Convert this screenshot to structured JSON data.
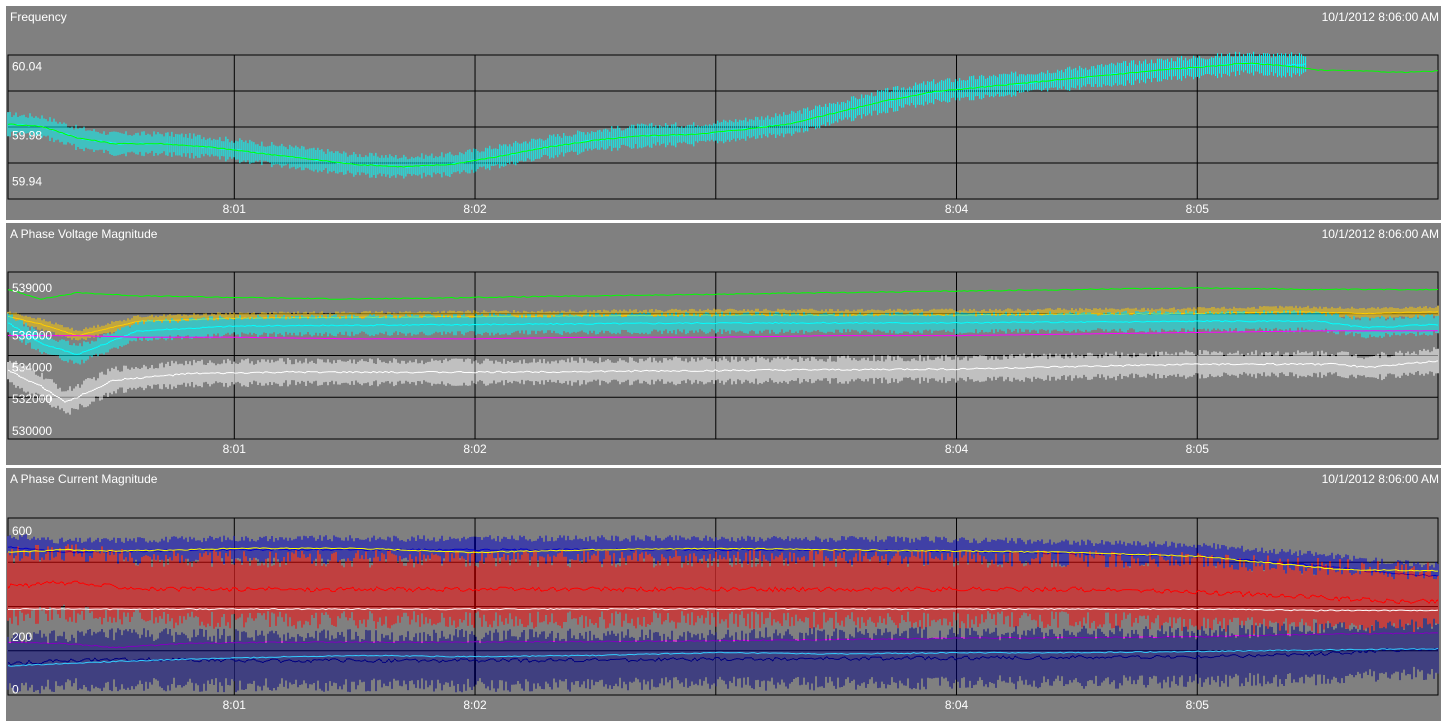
{
  "chart_data": [
    {
      "type": "line",
      "title": "Frequency",
      "timestamp": "10/1/2012 8:06:00 AM",
      "x_ticks": [
        "8:01",
        "8:02",
        "8:04",
        "8:05"
      ],
      "x_unit": "minutes after 8:00",
      "xlim": [
        0.06,
        6.0
      ],
      "y_ticks": [
        "60.04",
        "59.98",
        "59.94"
      ],
      "ylim": [
        59.925,
        60.05
      ],
      "grid": true,
      "series": [
        {
          "color": "#00ffff",
          "style": "band",
          "x": [
            0.06,
            0.2,
            0.35,
            0.5,
            0.7,
            0.9,
            1.1,
            1.3,
            1.5,
            1.7,
            1.9,
            2.1,
            2.3,
            2.5,
            2.7,
            2.9,
            3.1,
            3.3,
            3.5,
            3.7,
            3.9,
            4.1,
            4.3,
            4.5,
            4.7,
            4.9,
            5.05,
            5.2,
            5.35,
            5.45
          ],
          "y": [
            59.99,
            59.988,
            59.978,
            59.973,
            59.973,
            59.97,
            59.965,
            59.96,
            59.955,
            59.953,
            59.955,
            59.962,
            59.97,
            59.976,
            59.98,
            59.981,
            59.985,
            59.99,
            60.0,
            60.01,
            60.018,
            60.022,
            60.026,
            60.03,
            60.034,
            60.038,
            60.04,
            60.043,
            60.041,
            60.042
          ],
          "spread": 0.011
        },
        {
          "color": "#00ff00",
          "x": [
            0.06,
            0.2,
            0.35,
            0.5,
            0.7,
            0.9,
            1.1,
            1.3,
            1.5,
            1.7,
            1.9,
            2.1,
            2.3,
            2.5,
            2.7,
            2.9,
            3.1,
            3.3,
            3.5,
            3.7,
            3.9,
            4.1,
            4.3,
            4.5,
            4.7,
            4.9,
            5.05,
            5.2,
            5.35,
            5.5,
            5.7,
            5.85,
            6.0
          ],
          "y": [
            59.99,
            59.988,
            59.978,
            59.973,
            59.973,
            59.97,
            59.965,
            59.96,
            59.955,
            59.953,
            59.955,
            59.962,
            59.97,
            59.976,
            59.98,
            59.981,
            59.985,
            59.99,
            60.0,
            60.01,
            60.018,
            60.022,
            60.026,
            60.03,
            60.034,
            60.038,
            60.04,
            60.043,
            60.041,
            60.037,
            60.036,
            60.035,
            60.036
          ]
        }
      ]
    },
    {
      "type": "line",
      "title": "A Phase Voltage Magnitude",
      "timestamp": "10/1/2012 8:06:00 AM",
      "x_ticks": [
        "8:01",
        "8:02",
        "8:04",
        "8:05"
      ],
      "x_unit": "minutes after 8:00",
      "xlim": [
        0.06,
        6.0
      ],
      "y_ticks": [
        "539000",
        "536000",
        "534000",
        "532000",
        "530000"
      ],
      "ylim": [
        529500,
        540000
      ],
      "grid": true,
      "series": [
        {
          "color": "#00ff00",
          "x": [
            0.06,
            0.2,
            0.35,
            0.6,
            1.0,
            1.5,
            2.0,
            2.5,
            3.0,
            3.5,
            4.0,
            4.5,
            5.0,
            5.5,
            6.0
          ],
          "y": [
            538900,
            538300,
            538700,
            538500,
            538400,
            538300,
            538400,
            538500,
            538600,
            538700,
            538800,
            538900,
            539000,
            538900,
            538900
          ]
        },
        {
          "color": "#ffcc00",
          "style": "band",
          "x": [
            0.06,
            0.2,
            0.35,
            0.6,
            1.0,
            2.0,
            3.0,
            4.0,
            5.0,
            5.4,
            5.7,
            6.0
          ],
          "y": [
            537200,
            536700,
            536000,
            536900,
            537100,
            537200,
            537300,
            537300,
            537400,
            537500,
            537400,
            537500
          ],
          "spread": 400
        },
        {
          "color": "#00ffff",
          "style": "band",
          "x": [
            0.06,
            0.2,
            0.35,
            0.6,
            1.0,
            2.0,
            3.0,
            4.0,
            5.0,
            5.5,
            5.7,
            6.0
          ],
          "y": [
            536800,
            535500,
            534800,
            536300,
            536600,
            536700,
            536800,
            536800,
            536900,
            536900,
            536500,
            536700
          ],
          "spread": 700
        },
        {
          "color": "#ff00ff",
          "x": [
            0.06,
            0.35,
            0.6,
            1.0,
            1.5,
            2.0,
            2.5,
            3.0,
            3.5,
            4.0,
            4.5,
            5.0,
            5.5,
            6.0
          ],
          "y": [
            536000,
            536000,
            535900,
            535900,
            535800,
            535800,
            535900,
            535900,
            536000,
            536000,
            536100,
            536200,
            536300,
            536300
          ],
          "spread": 150
        },
        {
          "color": "#ffffff",
          "style": "band",
          "x": [
            0.06,
            0.2,
            0.3,
            0.5,
            0.8,
            1.2,
            2.0,
            3.0,
            4.0,
            5.0,
            5.6,
            5.7,
            6.0
          ],
          "y": [
            533800,
            532800,
            531800,
            533200,
            533600,
            533700,
            533700,
            533800,
            533900,
            534200,
            534200,
            534000,
            534400
          ],
          "spread": 900
        }
      ]
    },
    {
      "type": "line",
      "title": "A Phase Current Magnitude",
      "timestamp": "10/1/2012 8:06:00 AM",
      "x_ticks": [
        "8:01",
        "8:02",
        "8:04",
        "8:05"
      ],
      "x_unit": "minutes after 8:00",
      "xlim": [
        0.06,
        6.0
      ],
      "y_ticks": [
        "600",
        "200",
        "0"
      ],
      "ylim": [
        -20,
        650
      ],
      "grid": true,
      "series": [
        {
          "color": "#0000cc",
          "style": "band",
          "x": [
            0.06,
            0.3,
            0.6,
            1.0,
            2.0,
            3.0,
            4.0,
            5.0,
            5.5,
            5.8,
            6.0
          ],
          "y": [
            540,
            520,
            525,
            530,
            530,
            530,
            525,
            505,
            470,
            440,
            430
          ],
          "spread": 55
        },
        {
          "color": "#ff0000",
          "style": "band",
          "x": [
            0.06,
            0.2,
            0.3,
            0.45,
            0.7,
            1.0,
            2.0,
            3.0,
            4.0,
            4.5,
            5.0,
            5.5,
            5.8,
            6.0
          ],
          "y": [
            390,
            400,
            405,
            395,
            380,
            380,
            380,
            380,
            380,
            380,
            370,
            350,
            335,
            335
          ],
          "spread": 150
        },
        {
          "color": "#ffff00",
          "x": [
            0.06,
            0.3,
            0.5,
            0.8,
            1.0,
            1.5,
            2.0,
            2.5,
            3.0,
            3.5,
            4.0,
            4.5,
            5.0,
            5.3,
            5.6,
            6.0
          ],
          "y": [
            520,
            530,
            525,
            530,
            535,
            535,
            520,
            530,
            535,
            530,
            525,
            520,
            505,
            480,
            455,
            450
          ]
        },
        {
          "color": "#ffffff",
          "x": [
            0.06,
            1.0,
            2.0,
            3.0,
            4.0,
            5.0,
            5.5,
            6.0
          ],
          "y": [
            305,
            305,
            305,
            305,
            305,
            305,
            300,
            300
          ]
        },
        {
          "color": "#ff00ff",
          "x": [
            0.06,
            0.3,
            0.5,
            0.8,
            1.2,
            2.0,
            3.0,
            4.0,
            5.0,
            5.5,
            6.0
          ],
          "y": [
            180,
            175,
            160,
            175,
            180,
            180,
            185,
            195,
            200,
            210,
            215
          ]
        },
        {
          "color": "#000080",
          "style": "band",
          "x": [
            0.06,
            0.3,
            0.6,
            1.0,
            2.0,
            3.0,
            4.0,
            5.0,
            5.5,
            5.8,
            6.0
          ],
          "y": [
            100,
            110,
            115,
            110,
            110,
            115,
            120,
            125,
            135,
            150,
            155
          ],
          "spread": 120
        },
        {
          "color": "#33ccff",
          "x": [
            0.06,
            0.3,
            0.6,
            1.0,
            1.5,
            2.0,
            2.5,
            3.0,
            3.5,
            4.0,
            4.5,
            5.0,
            5.5,
            6.0
          ],
          "y": [
            90,
            100,
            110,
            120,
            130,
            125,
            130,
            140,
            135,
            140,
            140,
            145,
            150,
            155
          ]
        }
      ]
    }
  ]
}
